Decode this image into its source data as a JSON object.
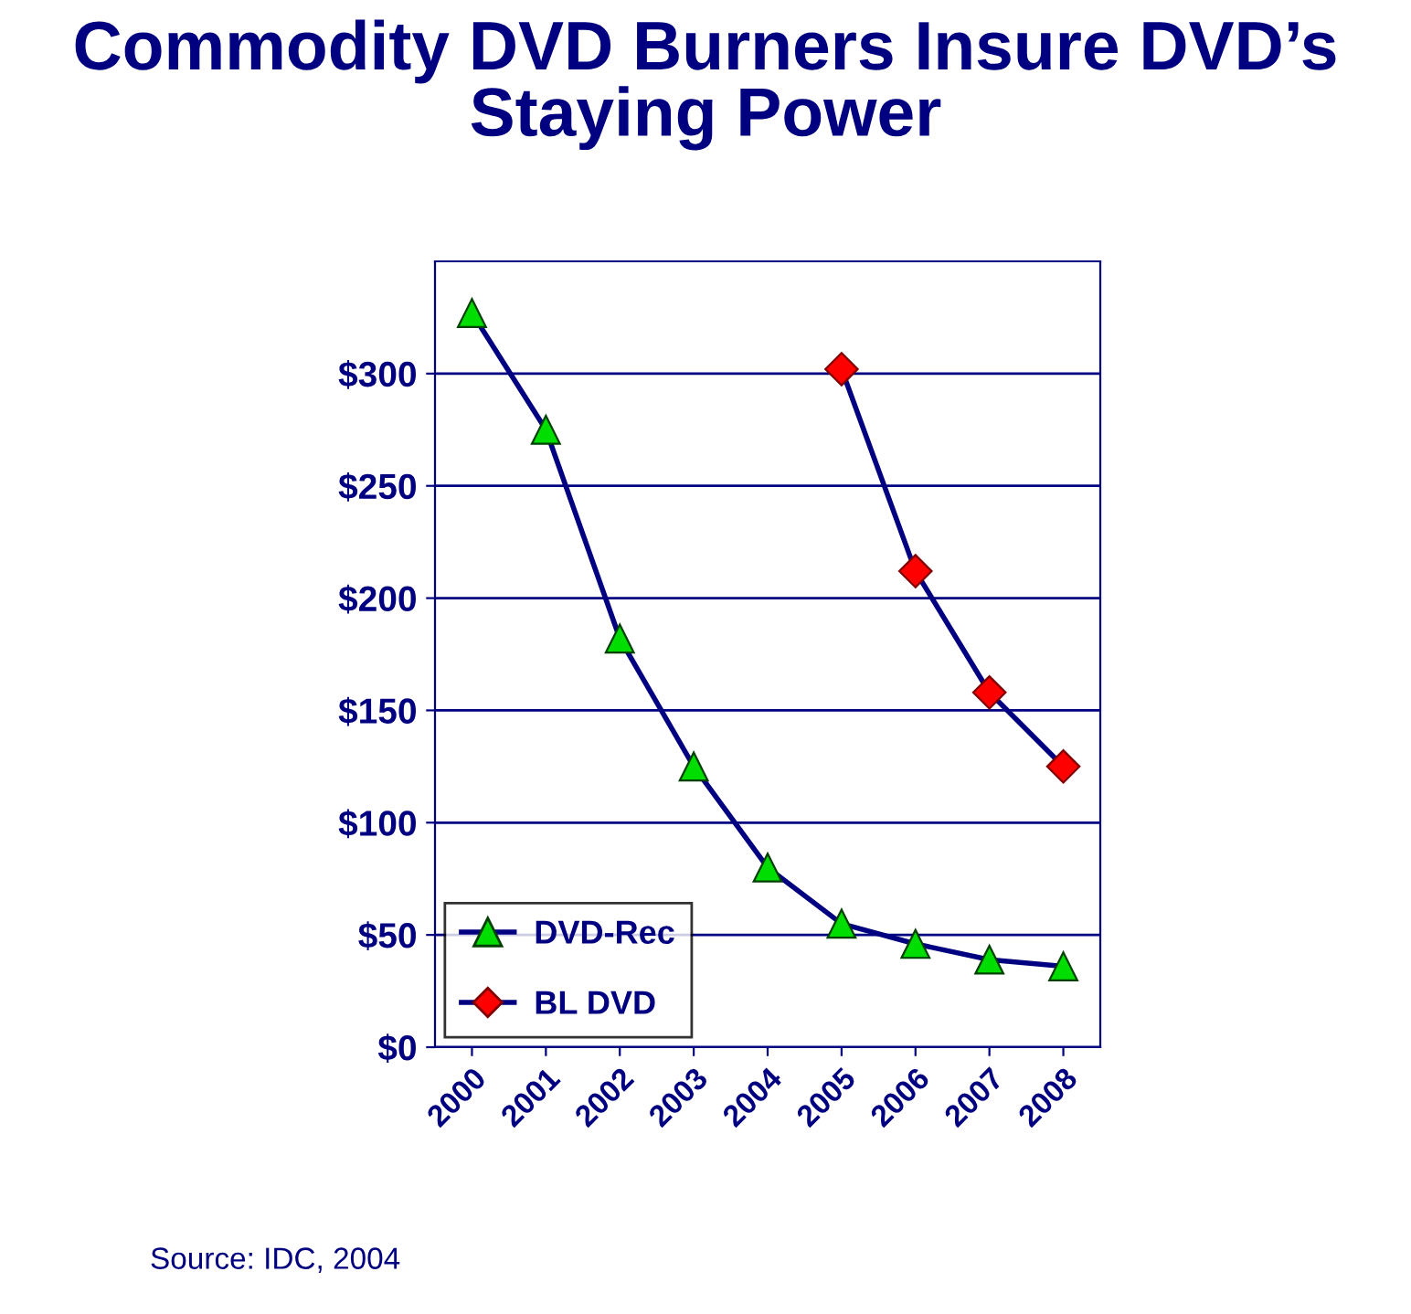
{
  "chart_data": {
    "type": "line",
    "title": "Commodity DVD Burners Insure DVD’s\nStaying Power",
    "categories": [
      "2000",
      "2001",
      "2002",
      "2003",
      "2004",
      "2005",
      "2006",
      "2007",
      "2008"
    ],
    "series": [
      {
        "name": "DVD-Rec",
        "color": "#00dd00",
        "marker": "triangle",
        "values": [
          327,
          275,
          182,
          125,
          80,
          55,
          46,
          39,
          36
        ]
      },
      {
        "name": "BL DVD",
        "color": "#ff0000",
        "marker": "diamond",
        "values": [
          null,
          null,
          null,
          null,
          null,
          302,
          212,
          158,
          125
        ]
      }
    ],
    "ylim": [
      0,
      350
    ],
    "yticks": [
      {
        "value": 0,
        "label": "$0"
      },
      {
        "value": 50,
        "label": "$50"
      },
      {
        "value": 100,
        "label": "$100"
      },
      {
        "value": 150,
        "label": "$150"
      },
      {
        "value": 200,
        "label": "$200"
      },
      {
        "value": 250,
        "label": "$250"
      },
      {
        "value": 300,
        "label": "$300"
      }
    ],
    "grid": "y",
    "legend": "bottom left",
    "annotations": [
      "Source: IDC, 2004"
    ]
  }
}
